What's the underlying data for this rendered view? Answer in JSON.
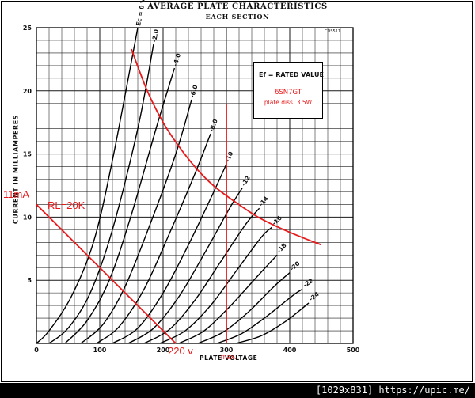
{
  "title": "AVERAGE PLATE CHARACTERISTICS",
  "subtitle": "EACH SECTION",
  "code": "CDS511",
  "colors": {
    "grid": "#1a1a1a",
    "curve": "#000000",
    "annotation": "#e8191a"
  },
  "info_box": {
    "ef": "Ef = RATED VALUE",
    "tube": "6SN7GT",
    "dissipation": "plate diss. 3.5W"
  },
  "annotations": {
    "current": "11mA",
    "load": "RL=20K",
    "voltage": "220 v",
    "max": "max."
  },
  "footer": {
    "text": "[1029x831] https://upic.me/"
  },
  "chart_data": {
    "type": "line",
    "title": "AVERAGE PLATE CHARACTERISTICS",
    "subtitle": "EACH SECTION",
    "xlabel": "PLATE VOLTAGE",
    "ylabel": "CURRENT IN MILLIAMPERES",
    "xlim": [
      0,
      500
    ],
    "ylim": [
      0,
      25
    ],
    "grid": true,
    "x_ticks": [
      0,
      100,
      200,
      300,
      400,
      500
    ],
    "y_ticks": [
      5,
      10,
      15,
      20,
      25
    ],
    "series": [
      {
        "name": "Ec = 0 VOLTS",
        "points": [
          [
            0,
            0
          ],
          [
            20,
            1
          ],
          [
            55,
            3.7
          ],
          [
            90,
            8
          ],
          [
            120,
            14.5
          ],
          [
            160,
            25
          ]
        ]
      },
      {
        "name": "-2.0",
        "points": [
          [
            20,
            0
          ],
          [
            50,
            1.2
          ],
          [
            85,
            4
          ],
          [
            120,
            9
          ],
          [
            160,
            17
          ],
          [
            185,
            23.7
          ]
        ]
      },
      {
        "name": "-4.0",
        "points": [
          [
            45,
            0
          ],
          [
            80,
            1.8
          ],
          [
            115,
            5
          ],
          [
            150,
            10.2
          ],
          [
            190,
            17.2
          ],
          [
            218,
            21.8
          ]
        ]
      },
      {
        "name": "-6.0",
        "points": [
          [
            70,
            0
          ],
          [
            105,
            1.5
          ],
          [
            140,
            4.5
          ],
          [
            180,
            9.5
          ],
          [
            220,
            15
          ],
          [
            245,
            19.3
          ]
        ]
      },
      {
        "name": "-8.0",
        "points": [
          [
            95,
            0
          ],
          [
            130,
            1.3
          ],
          [
            170,
            4.3
          ],
          [
            210,
            8.7
          ],
          [
            250,
            13.4
          ],
          [
            275,
            16.6
          ]
        ]
      },
      {
        "name": "-10",
        "points": [
          [
            120,
            0
          ],
          [
            160,
            1.2
          ],
          [
            200,
            4
          ],
          [
            240,
            7.8
          ],
          [
            280,
            12
          ],
          [
            300,
            14.2
          ]
        ]
      },
      {
        "name": "-12",
        "points": [
          [
            145,
            0
          ],
          [
            185,
            1.2
          ],
          [
            225,
            3.7
          ],
          [
            265,
            7.1
          ],
          [
            305,
            10.7
          ],
          [
            325,
            12.3
          ]
        ]
      },
      {
        "name": "-14",
        "points": [
          [
            170,
            0
          ],
          [
            210,
            1.1
          ],
          [
            250,
            3.4
          ],
          [
            290,
            6.4
          ],
          [
            330,
            9.4
          ],
          [
            352,
            10.7
          ]
        ]
      },
      {
        "name": "-16",
        "points": [
          [
            195,
            0
          ],
          [
            235,
            1
          ],
          [
            275,
            3
          ],
          [
            315,
            5.7
          ],
          [
            355,
            8.4
          ],
          [
            372,
            9.2
          ]
        ]
      },
      {
        "name": "-18",
        "points": [
          [
            225,
            0
          ],
          [
            265,
            1
          ],
          [
            305,
            2.9
          ],
          [
            345,
            5.1
          ],
          [
            380,
            7
          ]
        ]
      },
      {
        "name": "-20",
        "points": [
          [
            255,
            0
          ],
          [
            295,
            0.9
          ],
          [
            335,
            2.5
          ],
          [
            375,
            4.5
          ],
          [
            400,
            5.6
          ]
        ]
      },
      {
        "name": "-22",
        "points": [
          [
            285,
            0
          ],
          [
            325,
            0.8
          ],
          [
            365,
            2.2
          ],
          [
            405,
            3.8
          ],
          [
            420,
            4.3
          ]
        ]
      },
      {
        "name": "-24",
        "points": [
          [
            315,
            0
          ],
          [
            355,
            0.6
          ],
          [
            395,
            1.8
          ],
          [
            430,
            3.2
          ]
        ]
      }
    ],
    "overlays": [
      {
        "name": "plate dissipation 3.5W",
        "points": [
          [
            150,
            23.3
          ],
          [
            175,
            20
          ],
          [
            200,
            17.5
          ],
          [
            225,
            15.6
          ],
          [
            250,
            14
          ],
          [
            275,
            12.7
          ],
          [
            300,
            11.7
          ],
          [
            350,
            10
          ],
          [
            400,
            8.8
          ],
          [
            450,
            7.8
          ]
        ]
      },
      {
        "name": "load line RL=20K",
        "points": [
          [
            0,
            11
          ],
          [
            220,
            0
          ]
        ]
      },
      {
        "name": "300 V max",
        "points": [
          [
            300,
            0
          ],
          [
            300,
            19
          ]
        ]
      }
    ]
  }
}
